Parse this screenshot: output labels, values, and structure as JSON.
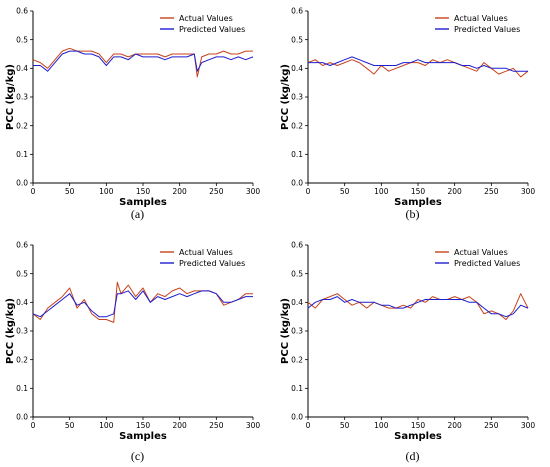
{
  "colors": {
    "actual": "#c8431b",
    "predicted": "#1f1fd0"
  },
  "chart_data": [
    {
      "type": "line",
      "caption": "(a)",
      "xlabel": "Samples",
      "ylabel": "PCC (kg/kg)",
      "xlim": [
        0,
        300
      ],
      "ylim": [
        0.0,
        0.6
      ],
      "xticks": [
        "0",
        "50",
        "100",
        "150",
        "200",
        "250",
        "300"
      ],
      "yticks": [
        "0.0",
        "0.1",
        "0.2",
        "0.3",
        "0.4",
        "0.5",
        "0.6"
      ],
      "legend": "top-right",
      "x": [
        0,
        10,
        20,
        30,
        40,
        50,
        60,
        70,
        80,
        90,
        100,
        110,
        120,
        130,
        140,
        150,
        160,
        170,
        180,
        190,
        200,
        210,
        220,
        224,
        230,
        240,
        250,
        260,
        270,
        280,
        290,
        300
      ],
      "series": [
        {
          "name": "Actual Values",
          "values": [
            0.43,
            0.42,
            0.4,
            0.43,
            0.46,
            0.47,
            0.46,
            0.46,
            0.46,
            0.45,
            0.42,
            0.45,
            0.45,
            0.44,
            0.45,
            0.45,
            0.45,
            0.45,
            0.44,
            0.45,
            0.45,
            0.45,
            0.45,
            0.37,
            0.44,
            0.45,
            0.45,
            0.46,
            0.45,
            0.45,
            0.46,
            0.46
          ]
        },
        {
          "name": "Predicted Values",
          "values": [
            0.41,
            0.41,
            0.39,
            0.42,
            0.45,
            0.46,
            0.46,
            0.45,
            0.45,
            0.44,
            0.41,
            0.44,
            0.44,
            0.43,
            0.45,
            0.44,
            0.44,
            0.44,
            0.43,
            0.44,
            0.44,
            0.44,
            0.45,
            0.39,
            0.42,
            0.43,
            0.44,
            0.44,
            0.43,
            0.44,
            0.43,
            0.44
          ]
        }
      ]
    },
    {
      "type": "line",
      "caption": "(b)",
      "xlabel": "Samples",
      "ylabel": "PCC (kg/kg)",
      "xlim": [
        0,
        300
      ],
      "ylim": [
        0.0,
        0.6
      ],
      "xticks": [
        "0",
        "50",
        "100",
        "150",
        "200",
        "250",
        "300"
      ],
      "yticks": [
        "0.0",
        "0.1",
        "0.2",
        "0.3",
        "0.4",
        "0.5",
        "0.6"
      ],
      "legend": "top-right",
      "x": [
        0,
        10,
        20,
        30,
        40,
        50,
        60,
        70,
        80,
        90,
        100,
        110,
        120,
        130,
        140,
        150,
        160,
        170,
        180,
        190,
        200,
        210,
        220,
        230,
        240,
        250,
        260,
        270,
        280,
        290,
        300
      ],
      "series": [
        {
          "name": "Actual Values",
          "values": [
            0.42,
            0.43,
            0.41,
            0.42,
            0.41,
            0.42,
            0.43,
            0.42,
            0.4,
            0.38,
            0.41,
            0.39,
            0.4,
            0.41,
            0.42,
            0.42,
            0.41,
            0.43,
            0.42,
            0.43,
            0.42,
            0.41,
            0.4,
            0.39,
            0.42,
            0.4,
            0.38,
            0.39,
            0.4,
            0.37,
            0.39
          ]
        },
        {
          "name": "Predicted Values",
          "values": [
            0.42,
            0.42,
            0.42,
            0.41,
            0.42,
            0.43,
            0.44,
            0.43,
            0.42,
            0.41,
            0.41,
            0.41,
            0.41,
            0.42,
            0.42,
            0.43,
            0.42,
            0.42,
            0.42,
            0.42,
            0.42,
            0.41,
            0.41,
            0.4,
            0.41,
            0.4,
            0.4,
            0.4,
            0.39,
            0.39,
            0.39
          ]
        }
      ]
    },
    {
      "type": "line",
      "caption": "(c)",
      "xlabel": "Samples",
      "ylabel": "PCC (kg/kg)",
      "xlim": [
        0,
        300
      ],
      "ylim": [
        0.0,
        0.6
      ],
      "xticks": [
        "0",
        "50",
        "100",
        "150",
        "200",
        "250",
        "300"
      ],
      "yticks": [
        "0.0",
        "0.1",
        "0.2",
        "0.3",
        "0.4",
        "0.5",
        "0.6"
      ],
      "legend": "top-right",
      "x": [
        0,
        10,
        20,
        30,
        40,
        50,
        60,
        70,
        80,
        90,
        100,
        110,
        115,
        120,
        130,
        140,
        150,
        160,
        170,
        180,
        190,
        200,
        210,
        220,
        230,
        240,
        250,
        260,
        270,
        280,
        290,
        300
      ],
      "series": [
        {
          "name": "Actual Values",
          "values": [
            0.36,
            0.34,
            0.38,
            0.4,
            0.42,
            0.45,
            0.38,
            0.41,
            0.36,
            0.34,
            0.34,
            0.33,
            0.47,
            0.43,
            0.46,
            0.42,
            0.45,
            0.4,
            0.43,
            0.42,
            0.44,
            0.45,
            0.43,
            0.44,
            0.44,
            0.44,
            0.43,
            0.39,
            0.4,
            0.41,
            0.43,
            0.43
          ]
        },
        {
          "name": "Predicted Values",
          "values": [
            0.36,
            0.35,
            0.37,
            0.39,
            0.41,
            0.43,
            0.39,
            0.4,
            0.37,
            0.35,
            0.35,
            0.36,
            0.43,
            0.43,
            0.44,
            0.41,
            0.44,
            0.4,
            0.42,
            0.41,
            0.42,
            0.43,
            0.42,
            0.43,
            0.44,
            0.44,
            0.43,
            0.4,
            0.4,
            0.41,
            0.42,
            0.42
          ]
        }
      ]
    },
    {
      "type": "line",
      "caption": "(d)",
      "xlabel": "Samples",
      "ylabel": "PCC (kg/kg)",
      "xlim": [
        0,
        300
      ],
      "ylim": [
        0.0,
        0.6
      ],
      "xticks": [
        "0",
        "50",
        "100",
        "150",
        "200",
        "250",
        "300"
      ],
      "yticks": [
        "0.0",
        "0.1",
        "0.2",
        "0.3",
        "0.4",
        "0.5",
        "0.6"
      ],
      "legend": "top-right",
      "x": [
        0,
        10,
        20,
        30,
        40,
        50,
        60,
        70,
        80,
        90,
        100,
        110,
        120,
        130,
        140,
        150,
        160,
        170,
        180,
        190,
        200,
        210,
        220,
        230,
        240,
        250,
        260,
        270,
        280,
        290,
        300
      ],
      "series": [
        {
          "name": "Actual Values",
          "values": [
            0.4,
            0.38,
            0.41,
            0.42,
            0.43,
            0.41,
            0.39,
            0.4,
            0.38,
            0.4,
            0.39,
            0.38,
            0.38,
            0.39,
            0.38,
            0.41,
            0.4,
            0.42,
            0.41,
            0.41,
            0.42,
            0.41,
            0.42,
            0.4,
            0.36,
            0.37,
            0.36,
            0.34,
            0.37,
            0.43,
            0.38
          ]
        },
        {
          "name": "Predicted Values",
          "values": [
            0.38,
            0.4,
            0.41,
            0.41,
            0.42,
            0.4,
            0.41,
            0.4,
            0.4,
            0.4,
            0.39,
            0.39,
            0.38,
            0.38,
            0.39,
            0.4,
            0.41,
            0.41,
            0.41,
            0.41,
            0.41,
            0.41,
            0.4,
            0.4,
            0.38,
            0.36,
            0.36,
            0.35,
            0.36,
            0.39,
            0.38
          ]
        }
      ]
    }
  ]
}
